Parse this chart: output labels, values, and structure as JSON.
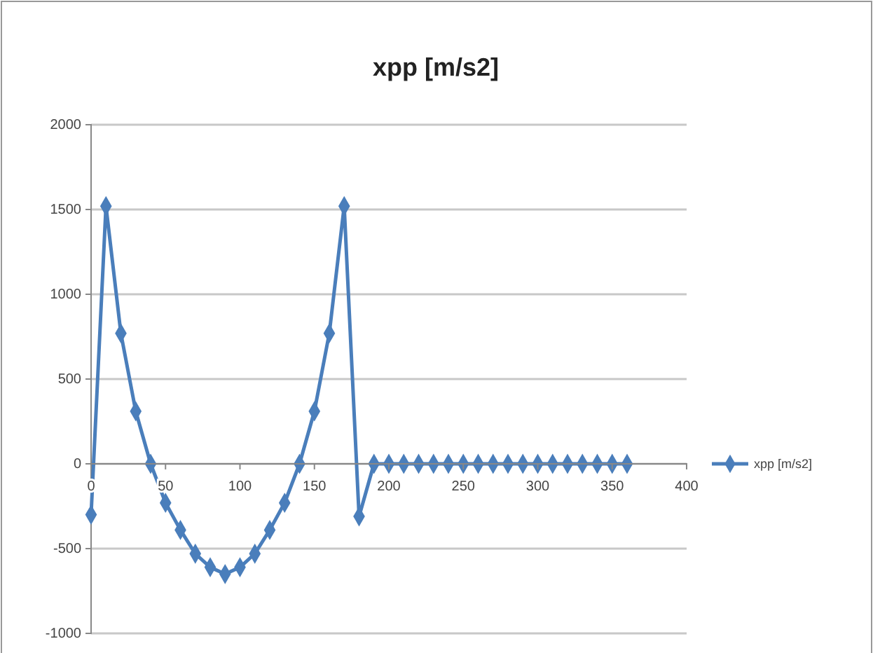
{
  "chart_data": {
    "type": "line",
    "title": "xpp [m/s2]",
    "x": [
      0,
      10,
      20,
      30,
      40,
      50,
      60,
      70,
      80,
      90,
      100,
      110,
      120,
      130,
      140,
      150,
      160,
      170,
      180,
      190,
      200,
      210,
      220,
      230,
      240,
      250,
      260,
      270,
      280,
      290,
      300,
      310,
      320,
      330,
      340,
      350,
      360
    ],
    "series": [
      {
        "name": "xpp [m/s2]",
        "color": "#4a7ebb",
        "values": [
          -300,
          1520,
          770,
          310,
          0,
          -230,
          -390,
          -530,
          -610,
          -650,
          -610,
          -530,
          -390,
          -230,
          0,
          310,
          770,
          1520,
          -310,
          0,
          0,
          0,
          0,
          0,
          0,
          0,
          0,
          0,
          0,
          0,
          0,
          0,
          0,
          0,
          0,
          0,
          0
        ]
      }
    ],
    "xlim": [
      0,
      400
    ],
    "xticks": [
      0,
      50,
      100,
      150,
      200,
      250,
      300,
      350,
      400
    ],
    "ylim": [
      -1000,
      2000
    ],
    "yticks": [
      -1000,
      -500,
      0,
      500,
      1000,
      1500,
      2000
    ],
    "grid": "y",
    "legend": "right",
    "marker": "diamond",
    "line_style": "solid"
  }
}
